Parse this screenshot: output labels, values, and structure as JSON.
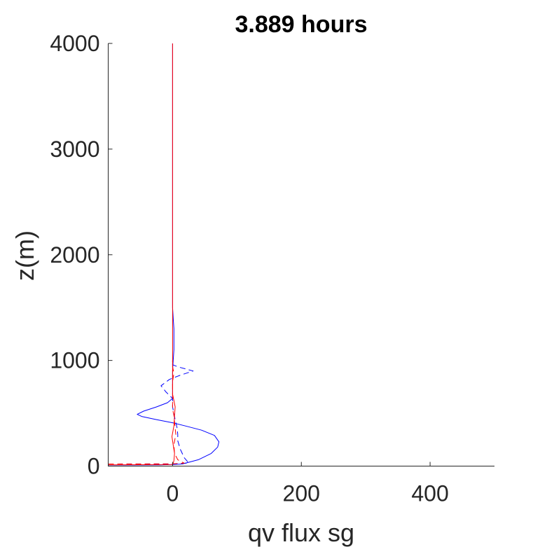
{
  "chart_data": {
    "type": "line",
    "title": "3.889 hours",
    "xlabel": "qv flux sg",
    "ylabel": "z(m)",
    "xlim": [
      -100,
      500
    ],
    "ylim": [
      0,
      4000
    ],
    "xticks": [
      0,
      200,
      400
    ],
    "xtick_labels": [
      "0",
      "200",
      "400"
    ],
    "yticks": [
      0,
      1000,
      2000,
      3000,
      4000
    ],
    "ytick_labels": [
      "0",
      "1000",
      "2000",
      "3000",
      "4000"
    ],
    "grid": false,
    "legend": false,
    "series": [
      {
        "color": "#0000ff",
        "style": "solid",
        "points": [
          [
            -100,
            10
          ],
          [
            -20,
            12
          ],
          [
            0,
            15
          ],
          [
            15,
            20
          ],
          [
            40,
            60
          ],
          [
            60,
            120
          ],
          [
            70,
            180
          ],
          [
            72,
            230
          ],
          [
            65,
            290
          ],
          [
            45,
            340
          ],
          [
            20,
            380
          ],
          [
            0,
            410
          ],
          [
            -25,
            440
          ],
          [
            -48,
            470
          ],
          [
            -55,
            490
          ],
          [
            -45,
            520
          ],
          [
            -25,
            560
          ],
          [
            -8,
            600
          ],
          [
            0,
            640
          ],
          [
            0,
            700
          ],
          [
            0,
            800
          ],
          [
            0,
            900
          ],
          [
            1,
            1000
          ],
          [
            2,
            1100
          ],
          [
            2,
            1200
          ],
          [
            2,
            1300
          ],
          [
            1,
            1400
          ],
          [
            0,
            1500
          ],
          [
            0,
            2000
          ],
          [
            0,
            2500
          ],
          [
            0,
            3000
          ],
          [
            0,
            3500
          ],
          [
            0,
            4000
          ]
        ]
      },
      {
        "color": "#0000ff",
        "style": "dashed",
        "points": [
          [
            -100,
            20
          ],
          [
            0,
            20
          ],
          [
            25,
            30
          ],
          [
            18,
            80
          ],
          [
            12,
            160
          ],
          [
            8,
            240
          ],
          [
            8,
            300
          ],
          [
            7,
            360
          ],
          [
            4,
            440
          ],
          [
            2,
            500
          ],
          [
            0,
            560
          ],
          [
            0,
            640
          ],
          [
            -10,
            700
          ],
          [
            -18,
            760
          ],
          [
            -5,
            820
          ],
          [
            12,
            860
          ],
          [
            32,
            900
          ],
          [
            8,
            940
          ],
          [
            0,
            960
          ],
          [
            0,
            1000
          ]
        ]
      },
      {
        "color": "#ff0000",
        "style": "solid",
        "points": [
          [
            -100,
            12
          ],
          [
            0,
            15
          ],
          [
            2,
            50
          ],
          [
            3,
            120
          ],
          [
            1,
            200
          ],
          [
            -1,
            280
          ],
          [
            2,
            380
          ],
          [
            3,
            480
          ],
          [
            4,
            560
          ],
          [
            2,
            620
          ],
          [
            0,
            680
          ],
          [
            0,
            800
          ],
          [
            0,
            900
          ],
          [
            0,
            1000
          ],
          [
            0,
            2000
          ],
          [
            0,
            3000
          ],
          [
            0,
            4000
          ]
        ]
      },
      {
        "color": "#ff0000",
        "style": "dashed",
        "points": [
          [
            -100,
            20
          ],
          [
            0,
            22
          ],
          [
            18,
            28
          ],
          [
            8,
            60
          ],
          [
            3,
            120
          ],
          [
            2,
            200
          ],
          [
            5,
            300
          ],
          [
            3,
            420
          ],
          [
            2,
            480
          ],
          [
            0,
            540
          ],
          [
            0,
            620
          ],
          [
            0,
            700
          ],
          [
            0,
            800
          ],
          [
            2,
            880
          ],
          [
            0,
            940
          ],
          [
            0,
            1000
          ]
        ]
      }
    ]
  }
}
